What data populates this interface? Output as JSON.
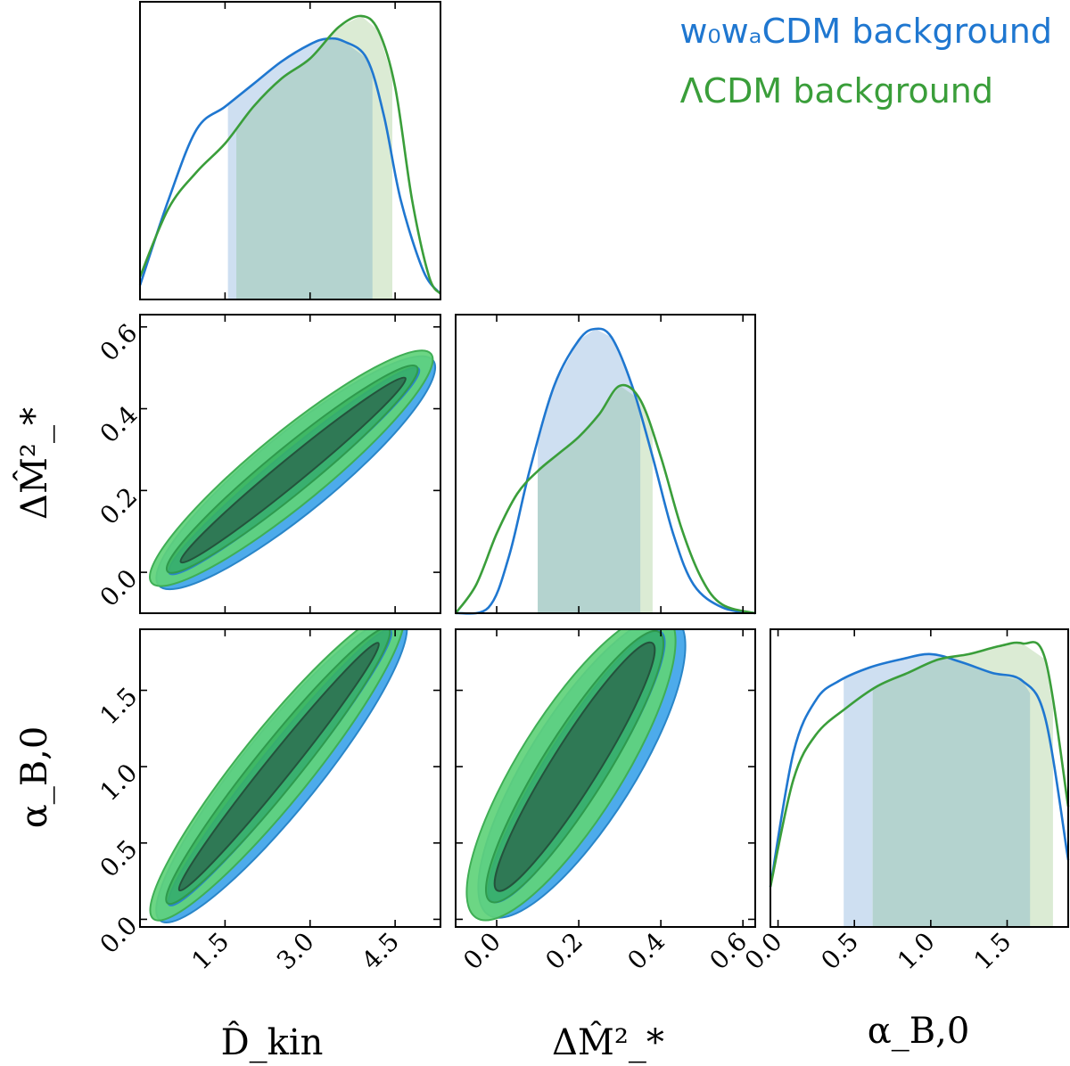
{
  "colors": {
    "series_blue": "#1f77d0",
    "series_green": "#3a9e3a",
    "blue_band": "#c6d9ee",
    "green_band": "#d5e8cc",
    "overlap_band": "#b4d3cf",
    "blue_contour_outer": "#43a6ea",
    "blue_contour_inner": "#2f8fd3",
    "green_contour_outer": "#5fd37a",
    "green_contour_mid": "#39b45f",
    "green_contour_inner": "#2e7653"
  },
  "legend": {
    "blue": "w₀wₐCDM background",
    "green": "ΛCDM background"
  },
  "axis_labels": {
    "d_kin": "D̂_kin",
    "dm2": "ΔM̂²_*",
    "alpha_b0": "α_B,0"
  },
  "chart_data": {
    "type": "corner",
    "parameters": [
      "D_kin",
      "DeltaM2_star",
      "alpha_B0"
    ],
    "ranges": {
      "D_kin": [
        0.0,
        5.3
      ],
      "DeltaM2_star": [
        -0.1,
        0.63
      ],
      "alpha_B0": [
        -0.05,
        1.9
      ]
    },
    "ticks": {
      "D_kin": [
        "1.5",
        "3.0",
        "4.5"
      ],
      "DeltaM2_star": [
        "0.0",
        "0.2",
        "0.4",
        "0.6"
      ],
      "alpha_B0": [
        "0.0",
        "0.5",
        "1.0",
        "1.5"
      ]
    },
    "series": [
      {
        "name": "w0waCDM background",
        "color": "#1f77d0",
        "marginals": {
          "D_kin": {
            "x": [
              0.0,
              0.5,
              1.0,
              1.5,
              2.0,
              2.5,
              3.0,
              3.3,
              3.6,
              4.0,
              4.3,
              4.6,
              5.0,
              5.3
            ],
            "density": [
              0.05,
              0.35,
              0.6,
              0.68,
              0.76,
              0.84,
              0.9,
              0.92,
              0.91,
              0.85,
              0.65,
              0.35,
              0.1,
              0.02
            ],
            "interval": [
              1.55,
              4.1
            ]
          },
          "DeltaM2_star": {
            "x": [
              -0.1,
              -0.02,
              0.03,
              0.08,
              0.14,
              0.2,
              0.24,
              0.28,
              0.33,
              0.38,
              0.43,
              0.48,
              0.55,
              0.63
            ],
            "density": [
              0.0,
              0.02,
              0.2,
              0.5,
              0.8,
              0.96,
              1.0,
              0.97,
              0.8,
              0.55,
              0.28,
              0.1,
              0.02,
              0.0
            ],
            "interval": [
              0.1,
              0.35
            ]
          },
          "alpha_B0": {
            "x": [
              -0.05,
              0.1,
              0.25,
              0.4,
              0.6,
              0.8,
              1.0,
              1.2,
              1.4,
              1.6,
              1.75,
              1.9
            ],
            "density": [
              0.15,
              0.65,
              0.85,
              0.92,
              0.97,
              1.0,
              1.02,
              0.99,
              0.95,
              0.92,
              0.78,
              0.25
            ],
            "interval": [
              0.43,
              1.65
            ]
          }
        }
      },
      {
        "name": "LambdaCDM background",
        "color": "#3a9e3a",
        "marginals": {
          "D_kin": {
            "x": [
              0.0,
              0.5,
              1.0,
              1.5,
              2.0,
              2.5,
              3.0,
              3.5,
              3.9,
              4.2,
              4.5,
              4.8,
              5.1,
              5.3
            ],
            "density": [
              0.08,
              0.32,
              0.45,
              0.55,
              0.68,
              0.78,
              0.85,
              0.96,
              1.0,
              0.95,
              0.75,
              0.35,
              0.08,
              0.02
            ],
            "interval": [
              1.7,
              4.45
            ]
          },
          "DeltaM2_star": {
            "x": [
              -0.1,
              -0.05,
              0.0,
              0.05,
              0.1,
              0.15,
              0.2,
              0.25,
              0.3,
              0.35,
              0.4,
              0.45,
              0.5,
              0.55,
              0.63
            ],
            "density": [
              0.0,
              0.1,
              0.28,
              0.42,
              0.5,
              0.56,
              0.62,
              0.7,
              0.8,
              0.75,
              0.55,
              0.3,
              0.12,
              0.03,
              0.0
            ],
            "interval": [
              0.1,
              0.38
            ]
          },
          "alpha_B0": {
            "x": [
              -0.05,
              0.1,
              0.25,
              0.45,
              0.65,
              0.85,
              1.05,
              1.25,
              1.45,
              1.6,
              1.75,
              1.9
            ],
            "density": [
              0.15,
              0.55,
              0.72,
              0.82,
              0.9,
              0.95,
              1.0,
              1.02,
              1.05,
              1.06,
              1.0,
              0.45
            ],
            "interval": [
              0.62,
              1.8
            ]
          }
        }
      }
    ],
    "joint_contours": {
      "D_kin_vs_DeltaM2_star": {
        "direction": "positive linear correlation",
        "ridge": [
          [
            0.5,
            0.0
          ],
          [
            4.9,
            0.5
          ]
        ],
        "levels": [
          "outer",
          "inner"
        ]
      },
      "D_kin_vs_alpha_B0": {
        "direction": "positive linear correlation",
        "ridge": [
          [
            0.5,
            0.1
          ],
          [
            4.4,
            1.9
          ]
        ],
        "levels": [
          "outer",
          "inner"
        ]
      },
      "DeltaM2_star_vs_alpha_B0": {
        "direction": "positive linear correlation",
        "ridge": [
          [
            -0.02,
            0.1
          ],
          [
            0.4,
            1.9
          ]
        ],
        "levels": [
          "outer",
          "inner"
        ]
      }
    }
  }
}
